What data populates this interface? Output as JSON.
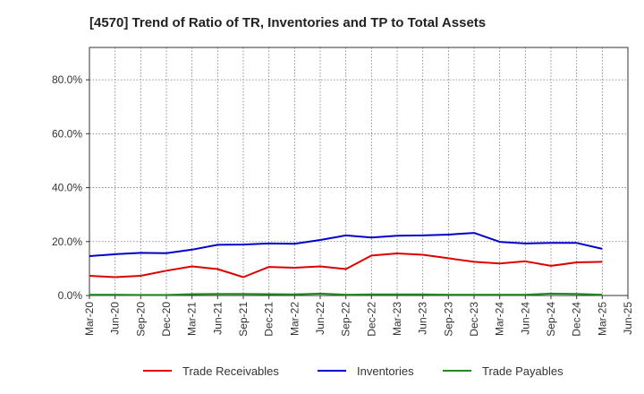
{
  "chart_data": {
    "type": "line",
    "title": "[4570]  Trend of Ratio of TR, Inventories and TP to Total Assets",
    "xlabel": "",
    "ylabel": "",
    "x": [
      "Mar-20",
      "Jun-20",
      "Sep-20",
      "Dec-20",
      "Mar-21",
      "Jun-21",
      "Sep-21",
      "Dec-21",
      "Mar-22",
      "Jun-22",
      "Sep-22",
      "Dec-22",
      "Mar-23",
      "Jun-23",
      "Sep-23",
      "Dec-23",
      "Mar-24",
      "Jun-24",
      "Sep-24",
      "Dec-24",
      "Mar-25",
      "Jun-25"
    ],
    "ylim": [
      0,
      92
    ],
    "y_ticks": [
      0,
      20,
      40,
      60,
      80
    ],
    "y_tick_labels": [
      "0.0%",
      "20.0%",
      "40.0%",
      "60.0%",
      "80.0%"
    ],
    "grid": true,
    "legend_position": "bottom",
    "series": [
      {
        "name": "Trade Receivables",
        "color": "#dd0000",
        "values": [
          7.3,
          6.8,
          7.3,
          9.2,
          10.8,
          9.8,
          6.8,
          10.6,
          10.3,
          10.8,
          9.8,
          14.8,
          15.6,
          15.1,
          13.8,
          12.5,
          11.9,
          12.7,
          11.0,
          12.3,
          12.5,
          null
        ]
      },
      {
        "name": "Inventories",
        "color": "#0000cc",
        "values": [
          14.6,
          15.3,
          15.8,
          15.7,
          17.0,
          18.8,
          18.9,
          19.3,
          19.2,
          20.6,
          22.3,
          21.5,
          22.2,
          22.3,
          22.6,
          23.2,
          19.9,
          19.3,
          19.5,
          19.5,
          17.3,
          null
        ]
      },
      {
        "name": "Trade Payables",
        "color": "#228822",
        "values": [
          0.3,
          0.3,
          0.2,
          0.2,
          0.5,
          0.6,
          0.6,
          0.5,
          0.4,
          0.7,
          0.3,
          0.4,
          0.4,
          0.4,
          0.3,
          0.3,
          0.3,
          0.3,
          0.7,
          0.6,
          0.3,
          null
        ]
      }
    ]
  }
}
